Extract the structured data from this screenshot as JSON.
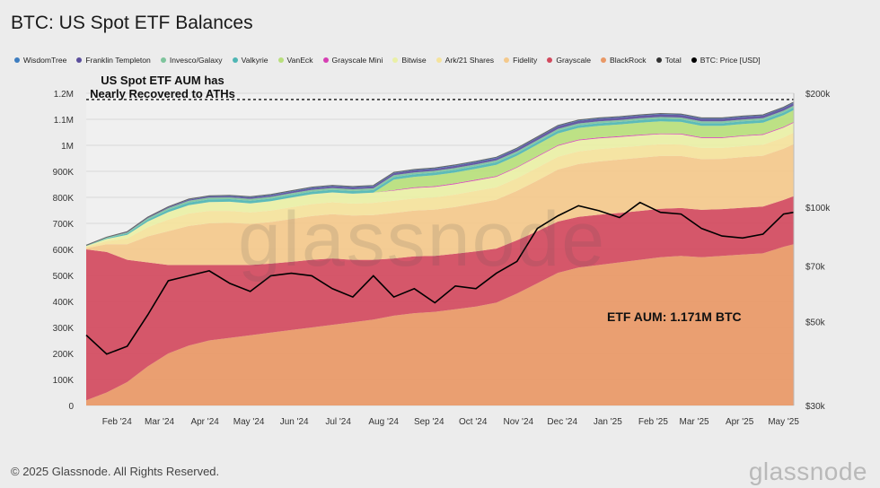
{
  "header": {
    "title": "BTC: US Spot ETF Balances"
  },
  "footer": {
    "copyright": "© 2025 Glassnode. All Rights Reserved.",
    "brand": "glassnode"
  },
  "watermark": "glassnode",
  "annotations": {
    "ath_note_line1": "US Spot ETF AUM has",
    "ath_note_line2": "Nearly Recovered to ATHs",
    "aum_label": "ETF AUM: 1.171M BTC"
  },
  "legend": [
    {
      "label": "WisdomTree",
      "color": "#3d7dc0"
    },
    {
      "label": "Franklin Templeton",
      "color": "#5b4e9c"
    },
    {
      "label": "Invesco/Galaxy",
      "color": "#7ec49c"
    },
    {
      "label": "Valkyrie",
      "color": "#4fb6b4"
    },
    {
      "label": "VanEck",
      "color": "#b8df7c"
    },
    {
      "label": "Grayscale Mini",
      "color": "#d63fb3"
    },
    {
      "label": "Bitwise",
      "color": "#eaf0a6"
    },
    {
      "label": "Ark/21 Shares",
      "color": "#f5e39c"
    },
    {
      "label": "Fidelity",
      "color": "#f4c98c"
    },
    {
      "label": "Grayscale",
      "color": "#d24a5e"
    },
    {
      "label": "BlackRock",
      "color": "#e99866"
    },
    {
      "label": "Total",
      "color": "#333333"
    },
    {
      "label": "BTC: Price [USD]",
      "color": "#000000"
    }
  ],
  "chart_data": {
    "type": "area",
    "title": "BTC: US Spot ETF Balances",
    "y_left_ticks": [
      "0",
      "100K",
      "200K",
      "300K",
      "400K",
      "500K",
      "600K",
      "700K",
      "800K",
      "900K",
      "1M",
      "1.1M",
      "1.2M"
    ],
    "y_right_ticks": [
      "$30k",
      "$50k",
      "$70k",
      "$100k",
      "$200k"
    ],
    "x_ticks": [
      "Feb '24",
      "Mar '24",
      "Apr '24",
      "May '24",
      "Jun '24",
      "Jul '24",
      "Aug '24",
      "Sep '24",
      "Oct '24",
      "Nov '24",
      "Dec '24",
      "Jan '25",
      "Feb '25",
      "Mar '25",
      "Apr '25",
      "May '25"
    ],
    "ylim_left": [
      0,
      1200000
    ],
    "ylim_right_log": [
      30000,
      200000
    ],
    "x": [
      "2024-01-11",
      "2024-01-25",
      "2024-02-08",
      "2024-02-22",
      "2024-03-07",
      "2024-03-21",
      "2024-04-04",
      "2024-04-18",
      "2024-05-02",
      "2024-05-16",
      "2024-05-30",
      "2024-06-13",
      "2024-06-27",
      "2024-07-11",
      "2024-07-25",
      "2024-08-08",
      "2024-08-22",
      "2024-09-05",
      "2024-09-19",
      "2024-10-03",
      "2024-10-17",
      "2024-10-31",
      "2024-11-14",
      "2024-11-28",
      "2024-12-12",
      "2024-12-26",
      "2025-01-09",
      "2025-01-23",
      "2025-02-06",
      "2025-02-20",
      "2025-03-06",
      "2025-03-20",
      "2025-04-03",
      "2025-04-17",
      "2025-05-01",
      "2025-05-08"
    ],
    "series": [
      {
        "name": "BlackRock",
        "color": "#e99866",
        "values": [
          20000,
          50000,
          90000,
          150000,
          200000,
          230000,
          250000,
          260000,
          270000,
          280000,
          290000,
          300000,
          310000,
          320000,
          330000,
          345000,
          355000,
          360000,
          370000,
          380000,
          395000,
          430000,
          470000,
          510000,
          530000,
          540000,
          550000,
          560000,
          570000,
          575000,
          570000,
          575000,
          580000,
          585000,
          610000,
          620000
        ]
      },
      {
        "name": "Grayscale",
        "color": "#d24a5e",
        "values": [
          580000,
          540000,
          470000,
          400000,
          340000,
          310000,
          290000,
          280000,
          270000,
          265000,
          262000,
          260000,
          255000,
          240000,
          230000,
          220000,
          218000,
          215000,
          213000,
          212000,
          208000,
          205000,
          200000,
          197000,
          195000,
          193000,
          190000,
          188000,
          186000,
          184000,
          182000,
          180000,
          180000,
          180000,
          180000,
          185000
        ]
      },
      {
        "name": "Fidelity",
        "color": "#f4c98c",
        "values": [
          5000,
          30000,
          60000,
          100000,
          130000,
          150000,
          160000,
          162000,
          158000,
          160000,
          165000,
          168000,
          170000,
          170000,
          172000,
          175000,
          176000,
          178000,
          180000,
          185000,
          188000,
          190000,
          195000,
          200000,
          203000,
          205000,
          205000,
          204000,
          203000,
          200000,
          195000,
          193000,
          195000,
          195000,
          197000,
          200000
        ]
      },
      {
        "name": "Ark/21 Shares",
        "color": "#f5e39c",
        "values": [
          5000,
          12000,
          22000,
          35000,
          45000,
          48000,
          48000,
          46000,
          44000,
          44000,
          45000,
          46000,
          46000,
          46000,
          47000,
          47000,
          47000,
          47000,
          48000,
          48000,
          48000,
          48000,
          49000,
          49000,
          49000,
          48000,
          47000,
          46000,
          45000,
          44000,
          43000,
          42000,
          42000,
          42000,
          43000,
          44000
        ]
      },
      {
        "name": "Bitwise",
        "color": "#eaf0a6",
        "values": [
          3000,
          8000,
          14000,
          22000,
          28000,
          32000,
          34000,
          35000,
          35000,
          36000,
          37000,
          38000,
          38000,
          38000,
          39000,
          39000,
          40000,
          40000,
          40000,
          40000,
          40000,
          41000,
          42000,
          42000,
          42000,
          41000,
          40000,
          40000,
          39000,
          39000,
          38000,
          38000,
          38000,
          38000,
          38000,
          38000
        ]
      },
      {
        "name": "Grayscale Mini",
        "color": "#d63fb3",
        "values": [
          0,
          0,
          0,
          0,
          0,
          0,
          0,
          0,
          0,
          0,
          0,
          0,
          0,
          0,
          0,
          2000,
          3000,
          3000,
          3000,
          3000,
          3000,
          3000,
          3000,
          3000,
          3000,
          3000,
          3000,
          3000,
          3000,
          3000,
          3000,
          3000,
          3000,
          3000,
          3000,
          3000
        ]
      },
      {
        "name": "VanEck",
        "color": "#b8df7c",
        "values": [
          0,
          0,
          0,
          0,
          0,
          0,
          0,
          0,
          0,
          0,
          0,
          0,
          0,
          0,
          0,
          40000,
          40000,
          42000,
          42000,
          42000,
          43000,
          43000,
          44000,
          45000,
          45000,
          45000,
          45000,
          46000,
          46000,
          45000,
          44000,
          44000,
          44000,
          44000,
          45000,
          46000
        ]
      },
      {
        "name": "Valkyrie",
        "color": "#4fb6b4",
        "values": [
          1000,
          3000,
          5000,
          7000,
          9000,
          10000,
          10000,
          10000,
          10000,
          10000,
          10000,
          10000,
          10000,
          10000,
          10000,
          10000,
          10000,
          10000,
          10000,
          10000,
          10000,
          10000,
          10000,
          10000,
          10000,
          10000,
          10000,
          10000,
          10000,
          10000,
          10000,
          10000,
          10000,
          10000,
          10000,
          10000
        ]
      },
      {
        "name": "Invesco/Galaxy",
        "color": "#7ec49c",
        "values": [
          1000,
          2500,
          4000,
          5500,
          6500,
          7000,
          7000,
          7000,
          7000,
          7000,
          7000,
          7000,
          7000,
          7000,
          7000,
          7000,
          7000,
          7000,
          7000,
          7000,
          7000,
          7000,
          7000,
          7000,
          7000,
          7000,
          7000,
          7000,
          7000,
          7000,
          7000,
          7000,
          7000,
          7000,
          7000,
          7000
        ]
      },
      {
        "name": "Franklin Templeton",
        "color": "#5b4e9c",
        "values": [
          500,
          1000,
          2000,
          3000,
          3500,
          4000,
          4500,
          5000,
          5500,
          6000,
          6500,
          7000,
          7000,
          7500,
          7500,
          8000,
          8000,
          8000,
          8500,
          8500,
          9000,
          9000,
          9500,
          10000,
          10000,
          10000,
          10000,
          10000,
          10000,
          10000,
          10000,
          10000,
          10000,
          10000,
          10000,
          10000
        ]
      },
      {
        "name": "WisdomTree",
        "color": "#3d7dc0",
        "values": [
          500,
          800,
          1200,
          1800,
          2200,
          2600,
          2800,
          3000,
          3000,
          3000,
          3100,
          3200,
          3200,
          3200,
          3200,
          3300,
          3300,
          3300,
          3300,
          3300,
          3400,
          3400,
          3400,
          3400,
          3400,
          3400,
          3400,
          3400,
          3400,
          3400,
          3400,
          3400,
          3400,
          3400,
          3400,
          3400
        ]
      },
      {
        "name": "BTC: Price [USD]",
        "color": "#000000",
        "axis": "right",
        "values": [
          46000,
          41000,
          43000,
          52000,
          64000,
          66000,
          68000,
          63000,
          60000,
          66000,
          67000,
          66000,
          61000,
          58000,
          66000,
          58000,
          61000,
          56000,
          62000,
          61000,
          67000,
          72000,
          88000,
          95000,
          101000,
          98000,
          94000,
          103000,
          97000,
          96000,
          88000,
          84000,
          83000,
          85000,
          96000,
          97000
        ]
      }
    ]
  }
}
